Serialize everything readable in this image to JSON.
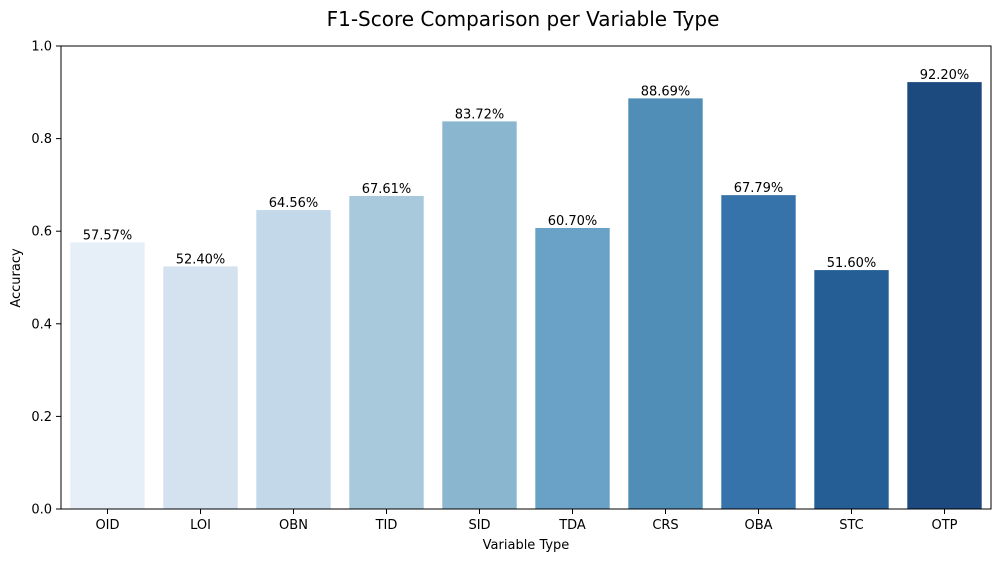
{
  "chart_data": {
    "type": "bar",
    "title": "F1-Score Comparison per Variable Type",
    "xlabel": "Variable Type",
    "ylabel": "Accuracy",
    "ylim": [
      0,
      1.0
    ],
    "yticks": [
      "0.0",
      "0.2",
      "0.4",
      "0.6",
      "0.8",
      "1.0"
    ],
    "categories": [
      "OID",
      "LOI",
      "OBN",
      "TID",
      "SID",
      "TDA",
      "CRS",
      "OBA",
      "STC",
      "OTP"
    ],
    "values": [
      0.5757,
      0.524,
      0.6456,
      0.6761,
      0.8372,
      0.607,
      0.8869,
      0.6779,
      0.516,
      0.922
    ],
    "value_labels": [
      "57.57%",
      "52.40%",
      "64.56%",
      "67.61%",
      "83.72%",
      "60.70%",
      "88.69%",
      "67.79%",
      "51.60%",
      "92.20%"
    ],
    "colors": [
      "#e6eff8",
      "#d4e2f0",
      "#c3d8e9",
      "#a8c8dc",
      "#8ab6d0",
      "#69a2c6",
      "#508db7",
      "#3673aa",
      "#255d95",
      "#1c4a7f"
    ],
    "grid": false,
    "legend": false
  }
}
